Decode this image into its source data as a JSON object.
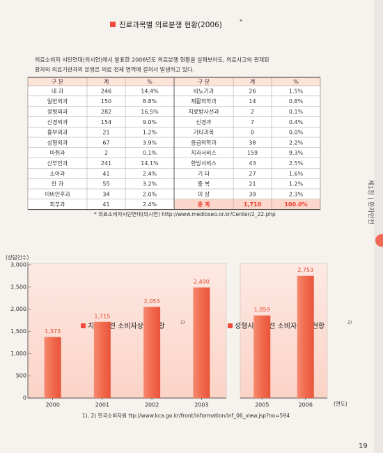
{
  "section_title": "진료과목별 의료분쟁 현황(2006)",
  "section_title_mark": "*",
  "intro": [
    "의료소비자 시민연대(의시연)에서 발표한 2006년도 의료분쟁 현황을 살펴보아도, 의료사고와 관계된",
    "환자와 의료기관과의 분쟁은 의료 전체 영역에 걸쳐서 발생하고 있다."
  ],
  "table": {
    "header": [
      "구 분",
      "계",
      "%",
      "구 분",
      "계",
      "%"
    ],
    "rows": [
      [
        "내 과",
        "246",
        "14.4%",
        "비뇨기과",
        "26",
        "1.5%"
      ],
      [
        "일반외과",
        "150",
        "8.8%",
        "재활의학과",
        "14",
        "0.8%"
      ],
      [
        "정형외과",
        "282",
        "16.5%",
        "치료방사선과",
        "2",
        "0.1%"
      ],
      [
        "신경외과",
        "154",
        "9.0%",
        "신경과",
        "7",
        "0.4%"
      ],
      [
        "흉부외과",
        "21",
        "1.2%",
        "기타과목",
        "0",
        "0.0%"
      ],
      [
        "성형외과",
        "67",
        "3.9%",
        "응급의학과",
        "38",
        "2.2%"
      ],
      [
        "마취과",
        "2",
        "0.1%",
        "치과서비스",
        "159",
        "9.3%"
      ],
      [
        "산부인과",
        "241",
        "14.1%",
        "한방서비스",
        "43",
        "2.5%"
      ],
      [
        "소아과",
        "41",
        "2.4%",
        "기 타",
        "27",
        "1.6%"
      ],
      [
        "안 과",
        "55",
        "3.2%",
        "중 복",
        "21",
        "1.2%"
      ],
      [
        "이비인후과",
        "34",
        "2.0%",
        "미 상",
        "39",
        "2.3%"
      ],
      [
        "피부과",
        "41",
        "2.4%",
        "총 계",
        "1,710",
        "100.0%"
      ]
    ]
  },
  "table_source": "* 의료소비자시민연대(의시연) http://www.medioseo.or.kr/Center/2_22.php",
  "chart_data": [
    {
      "type": "bar",
      "title": "치과 관련 소비자상담 현황",
      "title_note": "1)",
      "y_label": "(상담건수)",
      "categories": [
        "2000",
        "2001",
        "2002",
        "2003"
      ],
      "values": [
        1373,
        1715,
        2053,
        2490
      ],
      "value_labels": [
        "1,373",
        "1,715",
        "2,053",
        "2,490"
      ],
      "color": "#f26a4e",
      "ylim": [
        0,
        3000
      ],
      "yticks": [
        0,
        500,
        {
          "value": 1000,
          "label": "1,000"
        },
        {
          "value": 1500,
          "label": "1,500"
        },
        {
          "value": 2000,
          "label": "2,000"
        },
        {
          "value": 2500,
          "label": "2,500"
        },
        {
          "value": 3000,
          "label": "3,000"
        }
      ]
    },
    {
      "type": "bar",
      "title": "성형시술 관련 소비자상담 현황",
      "title_note": "2)",
      "x_label": "(연도)",
      "categories": [
        "2005",
        "2006"
      ],
      "values": [
        1859,
        2753
      ],
      "value_labels": [
        "1,859",
        "2,753"
      ],
      "color": "#f26a4e",
      "ylim": [
        0,
        3000
      ]
    }
  ],
  "chart_source": "1), 2) 한국소비자원 ttp://www.kca.go.kr/front/information/inf_06_view.jsp?no=594",
  "side_tab": "제1장 | 환자안전",
  "page_number": "19"
}
